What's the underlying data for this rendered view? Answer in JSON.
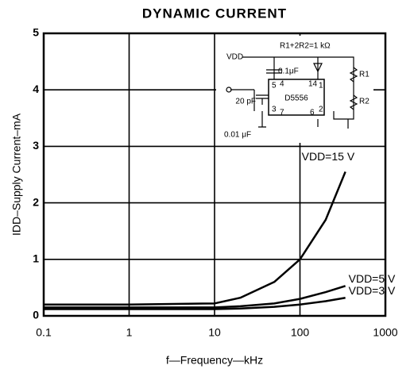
{
  "chart_data": {
    "type": "line",
    "title": "DYNAMIC CURRENT",
    "x_label": "f—Frequency—kHz",
    "y_label": "IDD–Supply Current–mA",
    "x": [
      0.1,
      1,
      10,
      20,
      50,
      100,
      200,
      340
    ],
    "series": [
      {
        "name": "VDD=15 V",
        "color": "#000000",
        "values": [
          0.2,
          0.2,
          0.22,
          0.32,
          0.6,
          1.0,
          1.7,
          2.55
        ]
      },
      {
        "name": "VDD=5 V",
        "color": "#000000",
        "values": [
          0.15,
          0.15,
          0.15,
          0.17,
          0.22,
          0.3,
          0.42,
          0.53
        ]
      },
      {
        "name": "VDD=3 V",
        "color": "#000000",
        "values": [
          0.12,
          0.12,
          0.12,
          0.13,
          0.16,
          0.2,
          0.26,
          0.32
        ]
      }
    ],
    "xscale": "log",
    "xlim": [
      0.1,
      1000
    ],
    "xticks": [
      0.1,
      1,
      10,
      100,
      1000
    ],
    "ylim": [
      0,
      5
    ],
    "yticks": [
      0,
      1,
      2,
      3,
      4,
      5
    ],
    "grid": true,
    "inset": {
      "vdd": "VDD",
      "resistance": "R1+2R2=1 kΩ",
      "c1": "0.1μF",
      "r1": "R1",
      "r2": "R2",
      "c2": "20 pF",
      "chip": "D5556",
      "c3": "0.01 μF",
      "pins": [
        "5",
        "4",
        "14",
        "1",
        "3",
        "7",
        "6",
        "2"
      ]
    }
  }
}
